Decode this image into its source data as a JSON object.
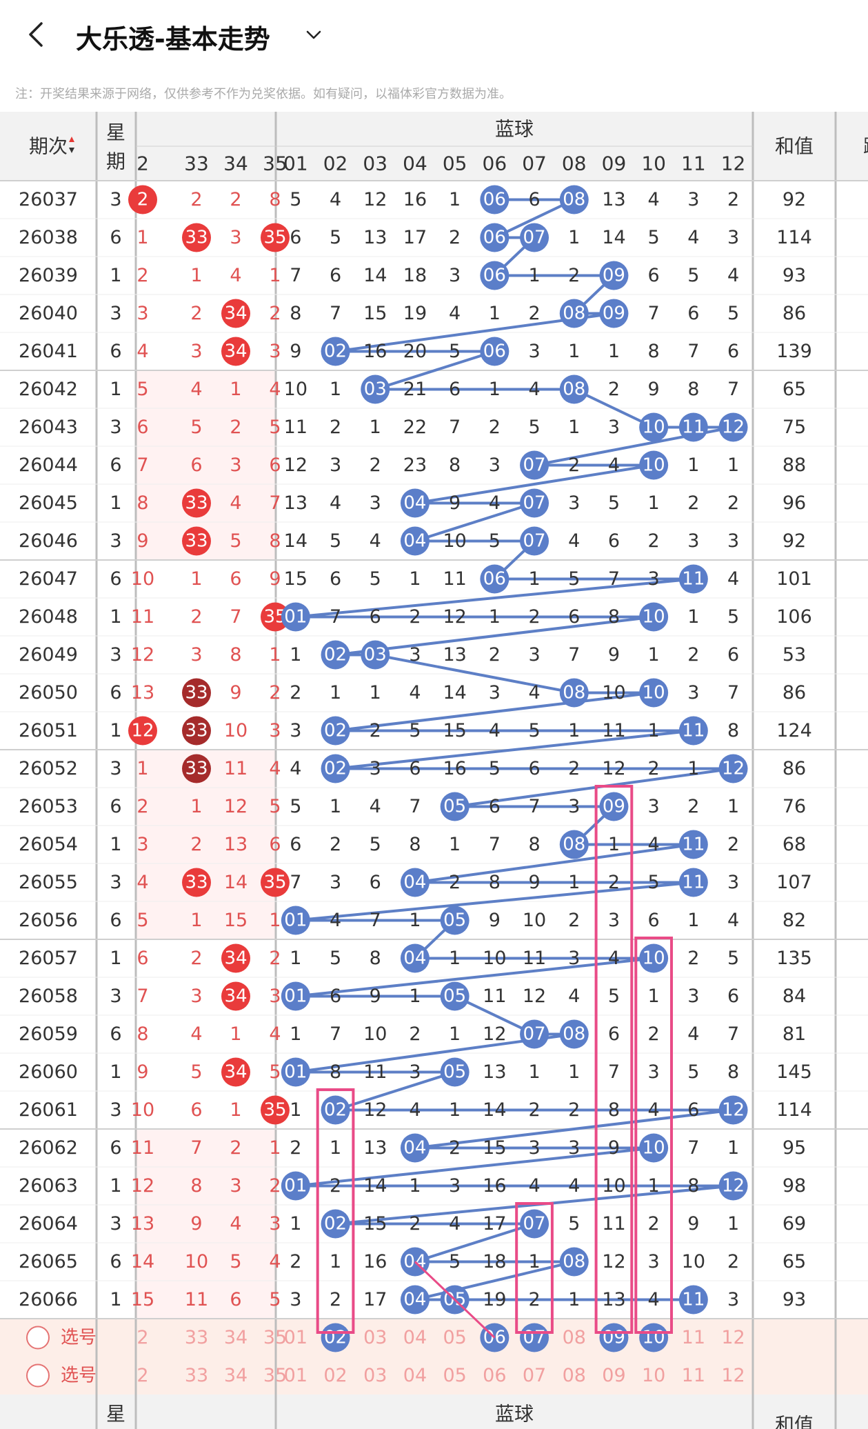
{
  "header": {
    "title": "大乐透-基本走势"
  },
  "note": "注：开奖结果来源于网络，仅供参考不作为兑奖依据。如有疑问，以福体彩官方数据为准。",
  "columns": {
    "period": "期次",
    "week": "星期",
    "blue_group": "蓝球",
    "sum": "和值",
    "extra_cut": "跳",
    "front_visible": [
      "2",
      "33",
      "34",
      "35"
    ],
    "blue_numbers": [
      "01",
      "02",
      "03",
      "04",
      "05",
      "06",
      "07",
      "08",
      "09",
      "10",
      "11",
      "12"
    ]
  },
  "rows": [
    {
      "period": "26037",
      "week": "3",
      "front": [
        "2",
        "2",
        "2",
        "8"
      ],
      "blue": [
        "5",
        "4",
        "12",
        "16",
        "1",
        "06",
        "6",
        "08",
        "13",
        "4",
        "3",
        "2"
      ],
      "sum": "92"
    },
    {
      "period": "26038",
      "week": "6",
      "front": [
        "1",
        "33",
        "3",
        "35"
      ],
      "blue": [
        "6",
        "5",
        "13",
        "17",
        "2",
        "06",
        "07",
        "1",
        "14",
        "5",
        "4",
        "3"
      ],
      "sum": "114"
    },
    {
      "period": "26039",
      "week": "1",
      "front": [
        "2",
        "1",
        "4",
        "1"
      ],
      "blue": [
        "7",
        "6",
        "14",
        "18",
        "3",
        "06",
        "1",
        "2",
        "09",
        "6",
        "5",
        "4"
      ],
      "sum": "93"
    },
    {
      "period": "26040",
      "week": "3",
      "front": [
        "3",
        "2",
        "34",
        "2"
      ],
      "blue": [
        "8",
        "7",
        "15",
        "19",
        "4",
        "1",
        "2",
        "08",
        "09",
        "7",
        "6",
        "5"
      ],
      "sum": "86"
    },
    {
      "period": "26041",
      "week": "6",
      "front": [
        "4",
        "3",
        "34",
        "3"
      ],
      "blue": [
        "9",
        "02",
        "16",
        "20",
        "5",
        "06",
        "3",
        "1",
        "1",
        "8",
        "7",
        "6"
      ],
      "sum": "139"
    },
    {
      "period": "26042",
      "week": "1",
      "front": [
        "5",
        "4",
        "1",
        "4"
      ],
      "blue": [
        "10",
        "1",
        "03",
        "21",
        "6",
        "1",
        "4",
        "08",
        "2",
        "9",
        "8",
        "7"
      ],
      "sum": "65"
    },
    {
      "period": "26043",
      "week": "3",
      "front": [
        "6",
        "5",
        "2",
        "5"
      ],
      "blue": [
        "11",
        "2",
        "1",
        "22",
        "7",
        "2",
        "5",
        "1",
        "3",
        "10",
        "11",
        "12"
      ],
      "sum": "75"
    },
    {
      "period": "26044",
      "week": "6",
      "front": [
        "7",
        "6",
        "3",
        "6"
      ],
      "blue": [
        "12",
        "3",
        "2",
        "23",
        "8",
        "3",
        "07",
        "2",
        "4",
        "10",
        "1",
        "1"
      ],
      "sum": "88"
    },
    {
      "period": "26045",
      "week": "1",
      "front": [
        "8",
        "33",
        "4",
        "7"
      ],
      "blue": [
        "13",
        "4",
        "3",
        "04",
        "9",
        "4",
        "07",
        "3",
        "5",
        "1",
        "2",
        "2"
      ],
      "sum": "96"
    },
    {
      "period": "26046",
      "week": "3",
      "front": [
        "9",
        "33",
        "5",
        "8"
      ],
      "blue": [
        "14",
        "5",
        "4",
        "04",
        "10",
        "5",
        "07",
        "4",
        "6",
        "2",
        "3",
        "3"
      ],
      "sum": "92"
    },
    {
      "period": "26047",
      "week": "6",
      "front": [
        "10",
        "1",
        "6",
        "9"
      ],
      "blue": [
        "15",
        "6",
        "5",
        "1",
        "11",
        "06",
        "1",
        "5",
        "7",
        "3",
        "11",
        "4"
      ],
      "sum": "101"
    },
    {
      "period": "26048",
      "week": "1",
      "front": [
        "11",
        "2",
        "7",
        "35"
      ],
      "blue": [
        "01",
        "7",
        "6",
        "2",
        "12",
        "1",
        "2",
        "6",
        "8",
        "10",
        "1",
        "5"
      ],
      "sum": "106"
    },
    {
      "period": "26049",
      "week": "3",
      "front": [
        "12",
        "3",
        "8",
        "1"
      ],
      "blue": [
        "1",
        "02",
        "03",
        "3",
        "13",
        "2",
        "3",
        "7",
        "9",
        "1",
        "2",
        "6"
      ],
      "sum": "53"
    },
    {
      "period": "26050",
      "week": "6",
      "front": [
        "13",
        "33",
        "9",
        "2"
      ],
      "blue": [
        "2",
        "1",
        "1",
        "4",
        "14",
        "3",
        "4",
        "08",
        "10",
        "10",
        "3",
        "7"
      ],
      "sum": "86"
    },
    {
      "period": "26051",
      "week": "1",
      "front": [
        "12",
        "33",
        "10",
        "3"
      ],
      "blue": [
        "3",
        "02",
        "2",
        "5",
        "15",
        "4",
        "5",
        "1",
        "11",
        "1",
        "11",
        "8"
      ],
      "sum": "124"
    },
    {
      "period": "26052",
      "week": "3",
      "front": [
        "1",
        "33",
        "11",
        "4"
      ],
      "blue": [
        "4",
        "02",
        "3",
        "6",
        "16",
        "5",
        "6",
        "2",
        "12",
        "2",
        "1",
        "12"
      ],
      "sum": "86"
    },
    {
      "period": "26053",
      "week": "6",
      "front": [
        "2",
        "1",
        "12",
        "5"
      ],
      "blue": [
        "5",
        "1",
        "4",
        "7",
        "05",
        "6",
        "7",
        "3",
        "09",
        "3",
        "2",
        "1"
      ],
      "sum": "76"
    },
    {
      "period": "26054",
      "week": "1",
      "front": [
        "3",
        "2",
        "13",
        "6"
      ],
      "blue": [
        "6",
        "2",
        "5",
        "8",
        "1",
        "7",
        "8",
        "08",
        "1",
        "4",
        "11",
        "2"
      ],
      "sum": "68"
    },
    {
      "period": "26055",
      "week": "3",
      "front": [
        "4",
        "33",
        "14",
        "35"
      ],
      "blue": [
        "7",
        "3",
        "6",
        "04",
        "2",
        "8",
        "9",
        "1",
        "2",
        "5",
        "11",
        "3"
      ],
      "sum": "107"
    },
    {
      "period": "26056",
      "week": "6",
      "front": [
        "5",
        "1",
        "15",
        "1"
      ],
      "blue": [
        "01",
        "4",
        "7",
        "1",
        "05",
        "9",
        "10",
        "2",
        "3",
        "6",
        "1",
        "4"
      ],
      "sum": "82"
    },
    {
      "period": "26057",
      "week": "1",
      "front": [
        "6",
        "2",
        "34",
        "2"
      ],
      "blue": [
        "1",
        "5",
        "8",
        "04",
        "1",
        "10",
        "11",
        "3",
        "4",
        "10",
        "2",
        "5"
      ],
      "sum": "135"
    },
    {
      "period": "26058",
      "week": "3",
      "front": [
        "7",
        "3",
        "34",
        "3"
      ],
      "blue": [
        "01",
        "6",
        "9",
        "1",
        "05",
        "11",
        "12",
        "4",
        "5",
        "1",
        "3",
        "6"
      ],
      "sum": "84"
    },
    {
      "period": "26059",
      "week": "6",
      "front": [
        "8",
        "4",
        "1",
        "4"
      ],
      "blue": [
        "1",
        "7",
        "10",
        "2",
        "1",
        "12",
        "07",
        "08",
        "6",
        "2",
        "4",
        "7"
      ],
      "sum": "81"
    },
    {
      "period": "26060",
      "week": "1",
      "front": [
        "9",
        "5",
        "34",
        "5"
      ],
      "blue": [
        "01",
        "8",
        "11",
        "3",
        "05",
        "13",
        "1",
        "1",
        "7",
        "3",
        "5",
        "8"
      ],
      "sum": "145"
    },
    {
      "period": "26061",
      "week": "3",
      "front": [
        "10",
        "6",
        "1",
        "35"
      ],
      "blue": [
        "1",
        "02",
        "12",
        "4",
        "1",
        "14",
        "2",
        "2",
        "8",
        "4",
        "6",
        "12"
      ],
      "sum": "114"
    },
    {
      "period": "26062",
      "week": "6",
      "front": [
        "11",
        "7",
        "2",
        "1"
      ],
      "blue": [
        "2",
        "1",
        "13",
        "04",
        "2",
        "15",
        "3",
        "3",
        "9",
        "10",
        "7",
        "1"
      ],
      "sum": "95"
    },
    {
      "period": "26063",
      "week": "1",
      "front": [
        "12",
        "8",
        "3",
        "2"
      ],
      "blue": [
        "01",
        "2",
        "14",
        "1",
        "3",
        "16",
        "4",
        "4",
        "10",
        "1",
        "8",
        "12"
      ],
      "sum": "98"
    },
    {
      "period": "26064",
      "week": "3",
      "front": [
        "13",
        "9",
        "4",
        "3"
      ],
      "blue": [
        "1",
        "02",
        "15",
        "2",
        "4",
        "17",
        "07",
        "5",
        "11",
        "2",
        "9",
        "1"
      ],
      "sum": "69"
    },
    {
      "period": "26065",
      "week": "6",
      "front": [
        "14",
        "10",
        "5",
        "4"
      ],
      "blue": [
        "2",
        "1",
        "16",
        "04",
        "5",
        "18",
        "1",
        "08",
        "12",
        "3",
        "10",
        "2"
      ],
      "sum": "65"
    },
    {
      "period": "26066",
      "week": "1",
      "front": [
        "15",
        "11",
        "6",
        "5"
      ],
      "blue": [
        "3",
        "2",
        "17",
        "04",
        "05",
        "19",
        "2",
        "1",
        "13",
        "4",
        "11",
        "3"
      ],
      "sum": "93"
    }
  ],
  "pick_rows": [
    {
      "label": "选号",
      "selected_blue": [
        "02",
        "06",
        "07",
        "09",
        "10"
      ]
    },
    {
      "label": "选号",
      "selected_blue": []
    }
  ],
  "pick_front": [
    "2",
    "33",
    "34",
    "35"
  ],
  "front_hits": [
    [
      0
    ],
    [
      1,
      3
    ],
    [],
    [
      2
    ],
    [
      2
    ],
    [],
    [],
    [],
    [
      1
    ],
    [
      1
    ],
    [],
    [
      3
    ],
    [],
    [
      1
    ],
    [
      0,
      1
    ],
    [
      1
    ],
    [],
    [],
    [
      1,
      3
    ],
    [],
    [
      2
    ],
    [
      2
    ],
    [],
    [
      2
    ],
    [
      3
    ],
    [],
    [],
    [],
    [],
    []
  ],
  "front_repeat_hits": [
    [],
    [],
    [],
    [],
    [],
    [],
    [],
    [],
    [],
    [],
    [],
    [],
    [],
    [
      1
    ],
    [
      1
    ],
    [
      1
    ],
    [],
    [],
    [],
    [],
    [],
    [],
    [],
    [],
    [],
    [],
    [],
    [],
    [],
    []
  ],
  "colors": {
    "blue_ball": "#5b7ec9",
    "blue_line": "#5d7fc6",
    "red_ball": "#e93b3b",
    "dark_red_ball": "#a52b2b",
    "red_text": "#e05252",
    "pink_box": "#e94b87",
    "pick_bg": "#fdeee8",
    "header_bg": "#f2f2f2"
  },
  "icons": [
    "back-arrow-icon",
    "chevron-down-icon",
    "sort-arrows-icon",
    "radio-circle-icon"
  ]
}
